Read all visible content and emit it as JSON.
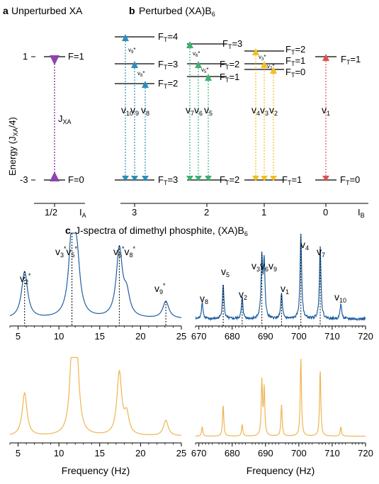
{
  "panel_a": {
    "letter": "a",
    "title": "Unperturbed XA",
    "ylabel_main": "Energy (J",
    "ylabel_sub": "XA",
    "ylabel_tail": "/4)",
    "yticks": [
      "1",
      "-3"
    ],
    "level_top": "F=1",
    "level_bottom": "F=0",
    "coupling_main": "J",
    "coupling_sub": "XA",
    "x_tick": "1/2",
    "x_label_main": "I",
    "x_label_sub": "A",
    "arrow_color": "#8e44ad"
  },
  "panel_b": {
    "letter": "b",
    "title_main": "Perturbed (XA)B",
    "title_sub": "6",
    "x_ticks": [
      "3",
      "2",
      "1",
      "0"
    ],
    "x_label_main": "I",
    "x_label_sub": "B",
    "F_main": "F",
    "F_sub": "T",
    "upper_levels": [
      {
        "group": "IB=3",
        "labels": [
          "=4",
          "=3",
          "=2"
        ],
        "color": "#2a8fbd",
        "nu": [
          "10",
          "9",
          "8"
        ],
        "star_labels": [
          "9",
          "8"
        ]
      },
      {
        "group": "IB=2",
        "labels": [
          "=3",
          "=2",
          "=1"
        ],
        "color": "#3cb371",
        "nu": [
          "7",
          "6",
          "5"
        ],
        "star_labels": [
          "6",
          "5"
        ]
      },
      {
        "group": "IB=1",
        "labels": [
          "=2",
          "=1",
          "=0"
        ],
        "color": "#f0c020",
        "nu": [
          "4",
          "3",
          "2"
        ],
        "star_labels": [
          "3",
          "2"
        ]
      },
      {
        "group": "IB=0",
        "labels": [
          "=1"
        ],
        "color": "#e05050",
        "nu": [
          "1"
        ],
        "star_labels": []
      }
    ],
    "lower_levels": [
      "=3",
      "=2",
      "=1",
      "=0"
    ],
    "nu_letter": "v",
    "star": "*"
  },
  "panel_c": {
    "letter": "c",
    "title_main": "J-spectra of dimethyl phosphite, (XA)B",
    "title_sub": "6",
    "xlabel": "Frequency (Hz)",
    "exp_color": "#1f5fa0",
    "sim_color": "#f0b450",
    "left_peak_labels": [
      {
        "text": "v",
        "sub": "2",
        "sup": "*"
      },
      {
        "text": "v",
        "sub": "3",
        "sup": "*",
        "text2": "v",
        "sub2": "5",
        "sup2": "*"
      },
      {
        "text": "v",
        "sub": "6",
        "sup": "*",
        "text2": "v",
        "sub2": "8",
        "sup2": "*"
      },
      {
        "text": "v",
        "sub": "9",
        "sup": "*"
      }
    ],
    "right_peak_labels": [
      {
        "text": "v",
        "sub": "8"
      },
      {
        "text": "v",
        "sub": "5"
      },
      {
        "text": "v",
        "sub": "2"
      },
      {
        "text": "v",
        "sub": "3",
        "text2": "v",
        "sub2": "6",
        "text3": "v",
        "sub3": "9"
      },
      {
        "text": "v",
        "sub": "1"
      },
      {
        "text": "v",
        "sub": "4"
      },
      {
        "text": "v",
        "sub": "7"
      },
      {
        "text": "v",
        "sub": "10"
      }
    ]
  },
  "chart_data": [
    {
      "type": "line",
      "title": "",
      "xlabel": "",
      "ylabel": "",
      "xlim": [
        4,
        25
      ],
      "xticks": [
        "5",
        "10",
        "15",
        "20",
        "25"
      ],
      "series": [
        {
          "peaks_hz": [
            5.8,
            11.6,
            12.2,
            17.4,
            18.3,
            23.1
          ],
          "peak_heights": [
            0.55,
            0.95,
            0.6,
            0.8,
            0.25,
            0.2
          ]
        }
      ],
      "dotted_markers_hz": [
        5.8,
        11.6,
        17.4,
        23.1
      ]
    },
    {
      "type": "line",
      "title": "",
      "xlabel": "",
      "ylabel": "",
      "xlim": [
        669,
        720
      ],
      "xticks": [
        "670",
        "680",
        "690",
        "700",
        "710",
        "720"
      ],
      "series": [
        {
          "peaks_hz": [
            671,
            677.3,
            683,
            688.9,
            689.6,
            694.8,
            700.6,
            706.4,
            712.6
          ],
          "peak_heights": [
            0.2,
            0.4,
            0.25,
            0.7,
            0.65,
            0.3,
            1.0,
            0.85,
            0.18
          ]
        }
      ],
      "dotted_markers_hz": [
        677.3,
        683,
        688.9,
        694.8,
        700.6,
        706.4
      ]
    },
    {
      "type": "line",
      "title": "",
      "xlabel": "Frequency (Hz)",
      "ylabel": "",
      "xlim": [
        4,
        25
      ],
      "xticks": [
        "5",
        "10",
        "15",
        "20",
        "25"
      ],
      "series": [
        {
          "peaks_hz": [
            5.8,
            11.6,
            12.2,
            17.4,
            18.3,
            23.1
          ],
          "peak_heights": [
            0.55,
            0.95,
            0.9,
            0.8,
            0.25,
            0.2
          ]
        }
      ]
    },
    {
      "type": "line",
      "title": "",
      "xlabel": "Frequency (Hz)",
      "ylabel": "",
      "xlim": [
        669,
        720
      ],
      "xticks": [
        "670",
        "680",
        "690",
        "700",
        "710",
        "720"
      ],
      "series": [
        {
          "peaks_hz": [
            671,
            677.3,
            683,
            688.9,
            689.6,
            694.8,
            700.6,
            706.4,
            712.6
          ],
          "peak_heights": [
            0.12,
            0.4,
            0.15,
            0.7,
            0.6,
            0.4,
            1.0,
            0.85,
            0.12
          ]
        }
      ]
    }
  ]
}
